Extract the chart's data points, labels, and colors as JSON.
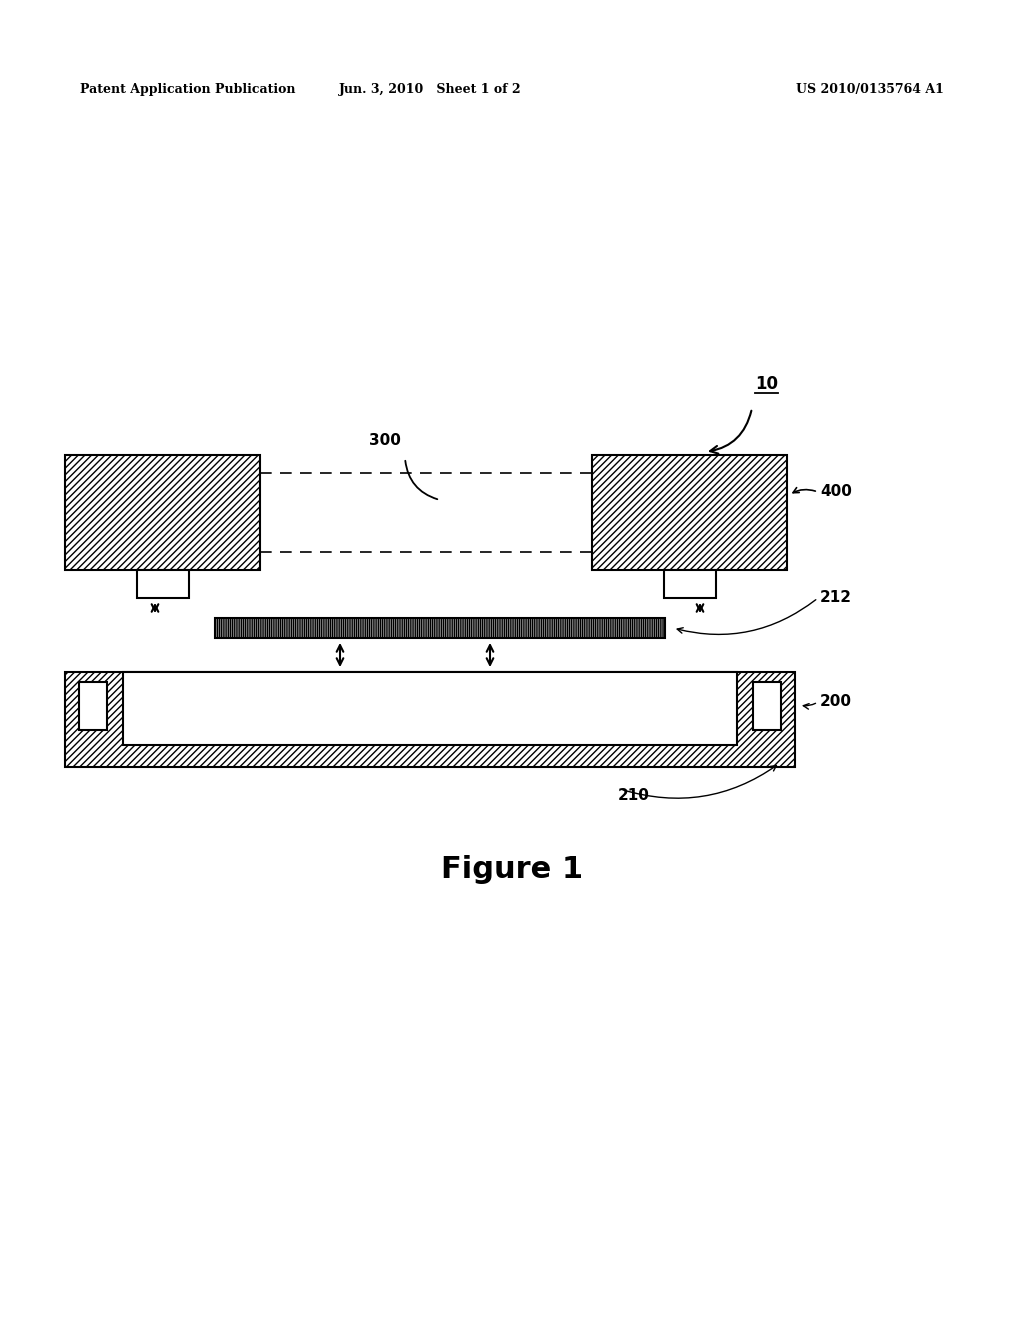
{
  "bg_color": "#ffffff",
  "line_color": "#000000",
  "header_left": "Patent Application Publication",
  "header_mid": "Jun. 3, 2010   Sheet 1 of 2",
  "header_right": "US 2010/0135764 A1",
  "figure_label": "Figure 1",
  "label_10": "10",
  "label_300": "300",
  "label_400": "400",
  "label_212": "212",
  "label_200": "200",
  "label_210": "210",
  "page_width": 10.24,
  "page_height": 13.2
}
